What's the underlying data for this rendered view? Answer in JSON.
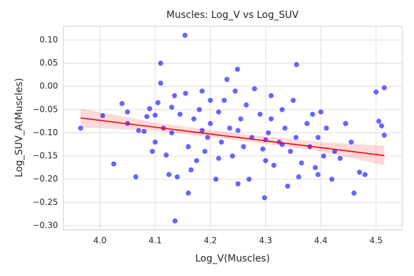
{
  "chart_data": {
    "type": "scatter",
    "title": "Muscles: Log_V vs Log_SUV",
    "x_label": "Log_V(Muscles)",
    "y_label": "Log_SUV_A(Muscles)",
    "xlim": [
      3.934,
      4.5475
    ],
    "ylim": [
      -0.309,
      0.1297
    ],
    "xticks": [
      {
        "value": 4,
        "label": "4.0"
      },
      4.1,
      4.2,
      4.3,
      4.4,
      4.5
    ],
    "yticks": [
      {
        "value": 0.1,
        "label": "0.10"
      },
      0.05,
      {
        "value": 0,
        "label": "0.00"
      },
      {
        "value": -0.05,
        "label": "−0.05"
      },
      {
        "value": -0.1,
        "label": "−0.10"
      },
      {
        "value": -0.15,
        "label": "−0.15"
      },
      {
        "value": -0.2,
        "label": "−0.20"
      },
      {
        "value": -0.25,
        "label": "−0.25"
      },
      {
        "value": -0.3,
        "label": "−0.30"
      }
    ],
    "grid": true,
    "color": "#0000ff",
    "x": [
      3.965,
      4.005,
      4.025,
      4.04,
      4.05,
      4.05,
      4.065,
      4.07,
      4.08,
      4.085,
      4.09,
      4.095,
      4.1,
      4.1,
      4.105,
      4.11,
      4.11,
      4.115,
      4.12,
      4.125,
      4.13,
      4.13,
      4.135,
      4.14,
      4.145,
      4.136,
      4.155,
      4.16,
      4.16,
      4.165,
      4.154,
      4.17,
      4.175,
      4.18,
      4.185,
      4.185,
      4.19,
      4.195,
      4.2,
      4.2,
      4.21,
      4.215,
      4.22,
      4.225,
      4.23,
      4.235,
      4.24,
      4.245,
      4.25,
      4.255,
      4.26,
      4.265,
      4.27,
      4.275,
      4.28,
      4.249,
      4.29,
      4.295,
      4.3,
      4.305,
      4.31,
      4.31,
      4.315,
      4.298,
      4.325,
      4.33,
      4.335,
      4.34,
      4.345,
      4.35,
      4.355,
      4.36,
      4.365,
      4.356,
      4.375,
      4.38,
      4.385,
      4.39,
      4.395,
      4.4,
      4.405,
      4.41,
      4.42,
      4.425,
      4.435,
      4.445,
      4.455,
      4.46,
      4.47,
      4.48,
      4.5,
      4.505,
      4.51,
      4.515,
      4.515,
      4.395,
      4.25,
      4.3,
      4.33,
      4.215
    ],
    "values": [
      -0.09,
      -0.063,
      -0.167,
      -0.037,
      -0.055,
      -0.08,
      -0.195,
      -0.095,
      -0.097,
      -0.065,
      -0.048,
      -0.14,
      -0.12,
      -0.062,
      -0.035,
      0.007,
      0.05,
      -0.09,
      -0.148,
      -0.19,
      -0.045,
      -0.1,
      -0.02,
      -0.195,
      -0.06,
      -0.29,
      -0.015,
      -0.13,
      -0.23,
      -0.18,
      0.11,
      -0.07,
      -0.16,
      -0.05,
      -0.095,
      -0.01,
      -0.14,
      -0.11,
      -0.03,
      -0.08,
      -0.2,
      -0.055,
      -0.12,
      -0.03,
      0.015,
      -0.09,
      -0.15,
      -0.01,
      -0.21,
      -0.07,
      -0.13,
      -0.04,
      -0.2,
      -0.11,
      -0.005,
      0.037,
      -0.06,
      -0.135,
      -0.16,
      -0.1,
      -0.02,
      -0.07,
      -0.17,
      -0.24,
      -0.12,
      -0.05,
      -0.09,
      -0.215,
      -0.14,
      -0.03,
      -0.11,
      -0.195,
      -0.165,
      0.047,
      -0.08,
      -0.13,
      -0.06,
      -0.175,
      -0.11,
      -0.055,
      -0.15,
      -0.09,
      -0.2,
      -0.14,
      -0.155,
      -0.08,
      -0.12,
      -0.23,
      -0.185,
      -0.19,
      -0.012,
      -0.075,
      -0.085,
      -0.003,
      -0.105,
      -0.19,
      -0.095,
      -0.115,
      -0.125,
      -0.155
    ],
    "regression": {
      "color": "#ff0000",
      "x": [
        3.965,
        4.1,
        4.25,
        4.4,
        4.515
      ],
      "values": [
        -0.068,
        -0.088,
        -0.11,
        -0.132,
        -0.149
      ],
      "lower": [
        -0.088,
        -0.096,
        -0.116,
        -0.14,
        -0.17
      ],
      "upper": [
        -0.048,
        -0.078,
        -0.102,
        -0.12,
        -0.128
      ]
    }
  }
}
